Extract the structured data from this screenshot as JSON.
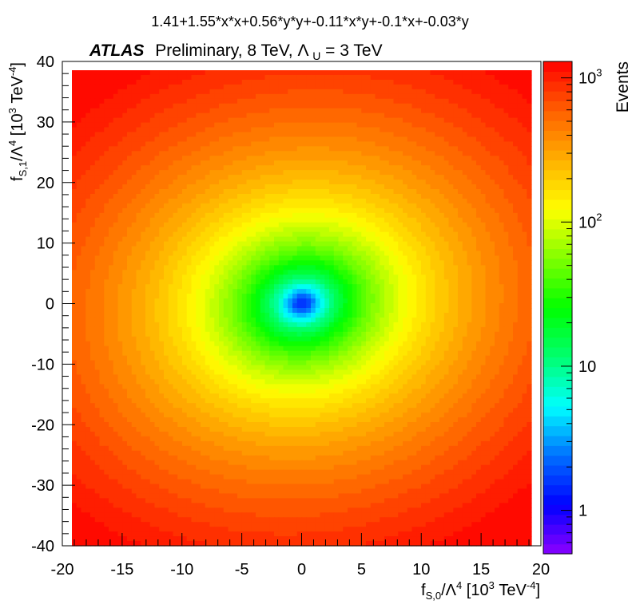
{
  "chart_data": {
    "type": "heatmap",
    "title": "1.41+1.55*x*x+0.56*y*y+-0.11*x*y+-0.1*x+-0.03*y",
    "label": {
      "experiment": "ATLAS",
      "status": "Preliminary, 8 TeV, ",
      "cutoff_symbol": "Λ",
      "cutoff_sub": "U",
      "cutoff_value": " = 3 TeV"
    },
    "xlabel": {
      "base": "f",
      "sub": "S,0",
      "mid": "/Λ",
      "pow": "4",
      "open": " [10",
      "exp": "3",
      "unit": " TeV",
      "unit_exp": "-4",
      "close": "]"
    },
    "ylabel": {
      "base": "f",
      "sub": "S,1",
      "mid": "/Λ",
      "pow": "4",
      "open": " [10",
      "exp": "3",
      "unit": " TeV",
      "unit_exp": "-4",
      "close": "]"
    },
    "zlabel": "Events",
    "xlim": [
      -20,
      20
    ],
    "ylim": [
      -40,
      40
    ],
    "x_ticks": [
      "-20",
      "-15",
      "-10",
      "-5",
      "0",
      "5",
      "10",
      "15",
      "20"
    ],
    "y_ticks": [
      "-40",
      "-30",
      "-20",
      "-10",
      "0",
      "10",
      "20",
      "30",
      "40"
    ],
    "z_scale": "log",
    "zlim": [
      0.5,
      1300
    ],
    "z_ticks": [
      {
        "value": 1,
        "base": "1",
        "exp": ""
      },
      {
        "value": 10,
        "base": "10",
        "exp": ""
      },
      {
        "value": 100,
        "base": "10",
        "exp": "2"
      },
      {
        "value": 1000,
        "base": "10",
        "exp": "3"
      }
    ],
    "function": {
      "c": 1.41,
      "xx": 1.55,
      "yy": 0.56,
      "xy": -0.11,
      "x": -0.1,
      "y": -0.03
    },
    "palette": [
      "#8c00ff",
      "#0000ff",
      "#0070ff",
      "#00ffff",
      "#00ff70",
      "#00ff00",
      "#80ff00",
      "#ffff00",
      "#ffb000",
      "#ff6000",
      "#ff0000"
    ],
    "grid": false,
    "legend": "colorbar-right"
  }
}
